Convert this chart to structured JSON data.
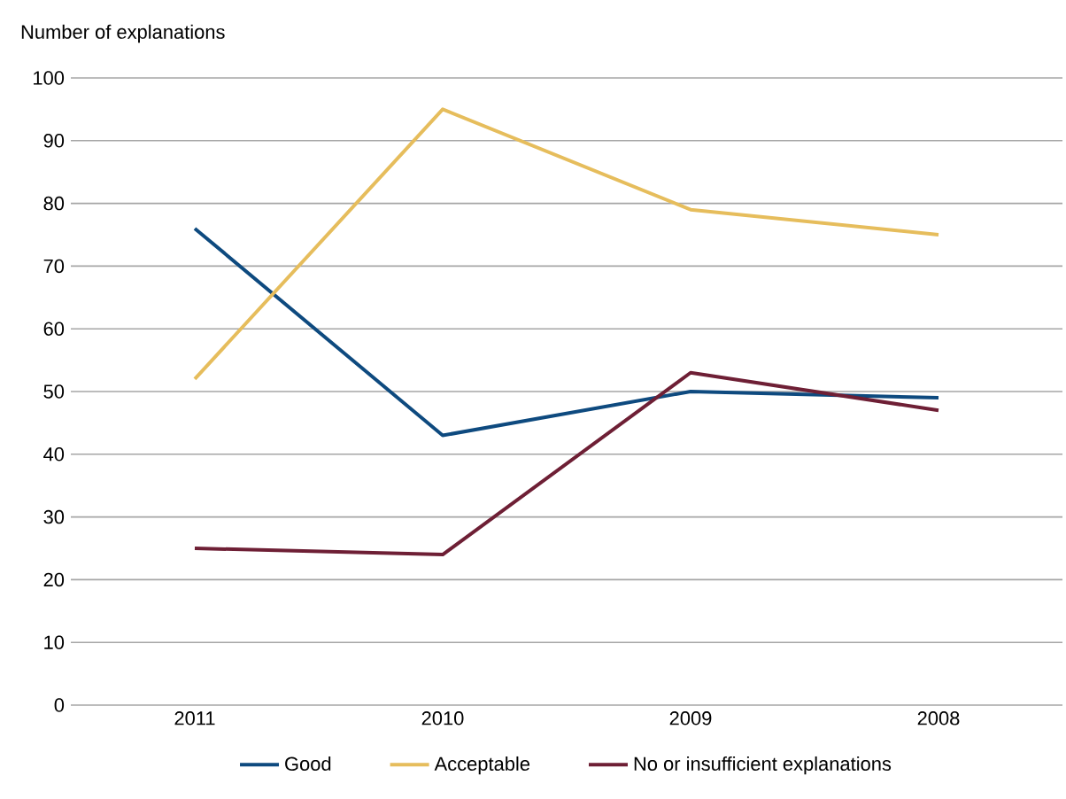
{
  "chart_data": {
    "type": "line",
    "ylabel": "Number of explanations",
    "categories": [
      "2011",
      "2010",
      "2009",
      "2008"
    ],
    "series": [
      {
        "name": "Good",
        "color": "#0e4a7f",
        "values": [
          76,
          43,
          50,
          49
        ]
      },
      {
        "name": "Acceptable",
        "color": "#e6bd5c",
        "values": [
          52,
          95,
          79,
          75
        ]
      },
      {
        "name": "No or insufficient explanations",
        "color": "#6e1f35",
        "values": [
          25,
          24,
          53,
          47
        ]
      }
    ],
    "ylim": [
      0,
      100
    ],
    "yticks": [
      0,
      10,
      20,
      30,
      40,
      50,
      60,
      70,
      80,
      90,
      100
    ],
    "grid": "y",
    "legend": "bottom",
    "marker": "none",
    "line_style": "solid"
  }
}
